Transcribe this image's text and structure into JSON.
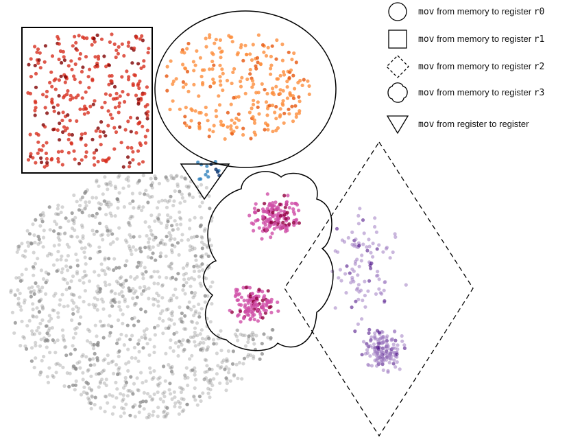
{
  "chart_data": {
    "type": "scatter",
    "title": "",
    "xlabel": "",
    "ylabel": "",
    "axes": "hidden",
    "grid": false,
    "legend_placement": "top-right",
    "background_points": {
      "color": "#888888",
      "count": 1200
    },
    "clusters": [
      {
        "id": "r0",
        "shape": "circle",
        "color": "#fd8d3c",
        "dark": "#e6550d",
        "count": 260
      },
      {
        "id": "r1",
        "shape": "square",
        "color": "#d7301f",
        "dark": "#7f0000",
        "count": 320
      },
      {
        "id": "r2",
        "shape": "diamond",
        "color": "#9e7cc1",
        "dark": "#3f007d",
        "count": 250
      },
      {
        "id": "r3",
        "shape": "cloud",
        "color": "#d04fa8",
        "dark": "#91003f",
        "count": 280
      },
      {
        "id": "reg",
        "shape": "triangle",
        "color": "#3182bd",
        "dark": "#08306b",
        "count": 14
      }
    ],
    "legend": [
      {
        "shape": "circle",
        "mono": "mov",
        "text": " from memory to register ",
        "reg": "r0"
      },
      {
        "shape": "square",
        "mono": "mov",
        "text": " from memory to register ",
        "reg": "r1"
      },
      {
        "shape": "diamond",
        "mono": "mov",
        "text": " from memory to register ",
        "reg": "r2"
      },
      {
        "shape": "cloud",
        "mono": "mov",
        "text": " from memory to register ",
        "reg": "r3"
      },
      {
        "shape": "triangle",
        "mono": "mov",
        "text": " from register to register",
        "reg": ""
      }
    ]
  }
}
